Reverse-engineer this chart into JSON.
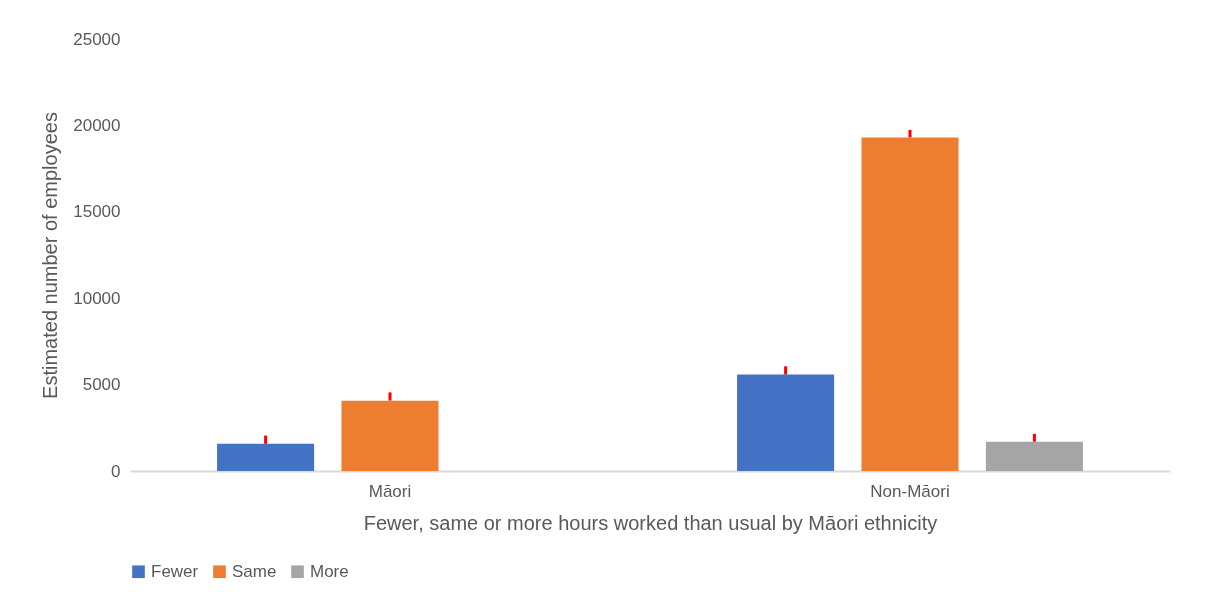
{
  "chart_data": {
    "type": "bar",
    "xlabel": "Fewer, same or more hours worked than usual by Māori ethnicity",
    "ylabel": "Estimated number of employees",
    "categories": [
      "Māori",
      "Non-Māori"
    ],
    "series": [
      {
        "name": "Fewer",
        "color": "#4472c4",
        "values": [
          1570,
          5580
        ],
        "errors": [
          [
            1570,
            2050
          ],
          [
            5580,
            6060
          ]
        ]
      },
      {
        "name": "Same",
        "color": "#ed7d31",
        "values": [
          4070,
          19300
        ],
        "errors": [
          [
            4070,
            4550
          ],
          [
            19300,
            19740
          ]
        ]
      },
      {
        "name": "More",
        "color": "#a5a5a5",
        "values": [
          null,
          1690
        ],
        "errors": [
          null,
          [
            1690,
            2150
          ]
        ]
      }
    ],
    "ylim": [
      0,
      25000
    ],
    "yticks": [
      0,
      5000,
      10000,
      15000,
      20000,
      25000
    ],
    "grid": false,
    "legend": "bottom"
  }
}
